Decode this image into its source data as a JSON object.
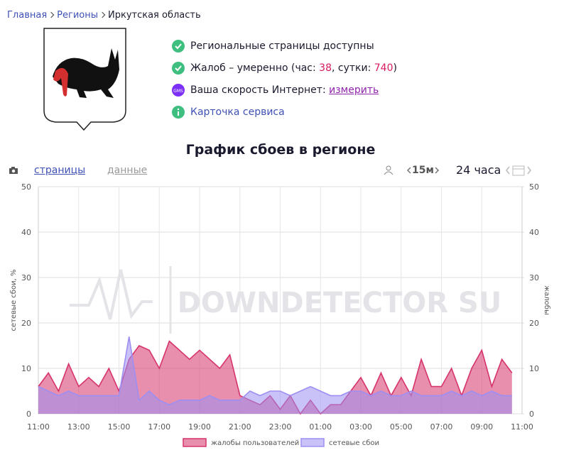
{
  "breadcrumbs": [
    "Главная",
    "Регионы",
    "Иркутская область"
  ],
  "status": {
    "pages": "Региональные страницы доступны",
    "complaints_prefix": "Жалоб – умеренно (час: ",
    "complaints_hour": 38,
    "complaints_mid": ", сутки: ",
    "complaints_day": 740,
    "complaints_suffix": ")",
    "speed_label": "Ваша скорость Интернет: ",
    "speed_link": "измерить",
    "speed_icon": "GMS",
    "card": "Карточка сервиса"
  },
  "chart_data": {
    "type": "area",
    "title": "График сбоев в регионе",
    "tabs": [
      "страницы",
      "данные"
    ],
    "interval": "15м",
    "period": "24 часа",
    "watermark": "DOWNDETECTOR SU",
    "ylabel": "сетевые сбои, %",
    "y2label": "жалобы",
    "x": [
      0,
      0.5,
      1,
      1.5,
      2,
      2.5,
      3,
      3.5,
      4,
      4.5,
      5,
      5.5,
      6,
      6.5,
      7,
      7.5,
      8,
      8.5,
      9,
      9.5,
      10,
      10.5,
      11,
      11.5,
      12,
      12.5,
      13,
      13.5,
      14,
      14.5,
      15,
      15.5,
      16,
      16.5,
      17,
      17.5,
      18,
      18.5,
      19,
      19.5,
      20,
      20.5,
      21,
      21.5,
      22,
      22.5,
      23,
      23.5
    ],
    "xlim": [
      0,
      24
    ],
    "xticks": [
      {
        "value": 0,
        "label": "11:00"
      },
      {
        "value": 2,
        "label": "13:00"
      },
      {
        "value": 4,
        "label": "15:00"
      },
      {
        "value": 6,
        "label": "17:00"
      },
      {
        "value": 8,
        "label": "19:00"
      },
      {
        "value": 10,
        "label": "21:00"
      },
      {
        "value": 12,
        "label": "23:00"
      },
      {
        "value": 14,
        "label": "01:00"
      },
      {
        "value": 16,
        "label": "03:00"
      },
      {
        "value": 18,
        "label": "05:00"
      },
      {
        "value": 20,
        "label": "07:00"
      },
      {
        "value": 22,
        "label": "09:00"
      },
      {
        "value": 24,
        "label": "11:00"
      }
    ],
    "ylim": [
      0,
      50
    ],
    "yticks": [
      0,
      10,
      20,
      30,
      40,
      50
    ],
    "y2lim": [
      0,
      50
    ],
    "y2ticks": [
      0,
      10,
      20,
      30,
      40,
      50
    ],
    "grid": true,
    "series": [
      {
        "name": "жалобы пользователей",
        "color": "#d6336c",
        "axis": "y2",
        "values": [
          6,
          9,
          5,
          11,
          6,
          8,
          6,
          10,
          5,
          12,
          15,
          14,
          10,
          16,
          14,
          12,
          14,
          12,
          10,
          13,
          4,
          3,
          2,
          4,
          1,
          4,
          0,
          3,
          0,
          2,
          2,
          5,
          8,
          4,
          9,
          4,
          8,
          4,
          12,
          6,
          6,
          10,
          4,
          10,
          14,
          6,
          12,
          9
        ]
      },
      {
        "name": "сетевые сбои",
        "color": "#9d8ff2",
        "values": [
          6,
          5,
          4,
          5,
          4,
          4,
          4,
          4,
          4,
          17,
          3,
          5,
          3,
          2,
          3,
          3,
          3,
          4,
          3,
          3,
          3,
          5,
          4,
          5,
          5,
          4,
          5,
          6,
          5,
          4,
          4,
          5,
          5,
          4,
          5,
          4,
          4,
          5,
          4,
          4,
          4,
          5,
          4,
          5,
          4,
          5,
          4,
          4
        ]
      }
    ]
  }
}
